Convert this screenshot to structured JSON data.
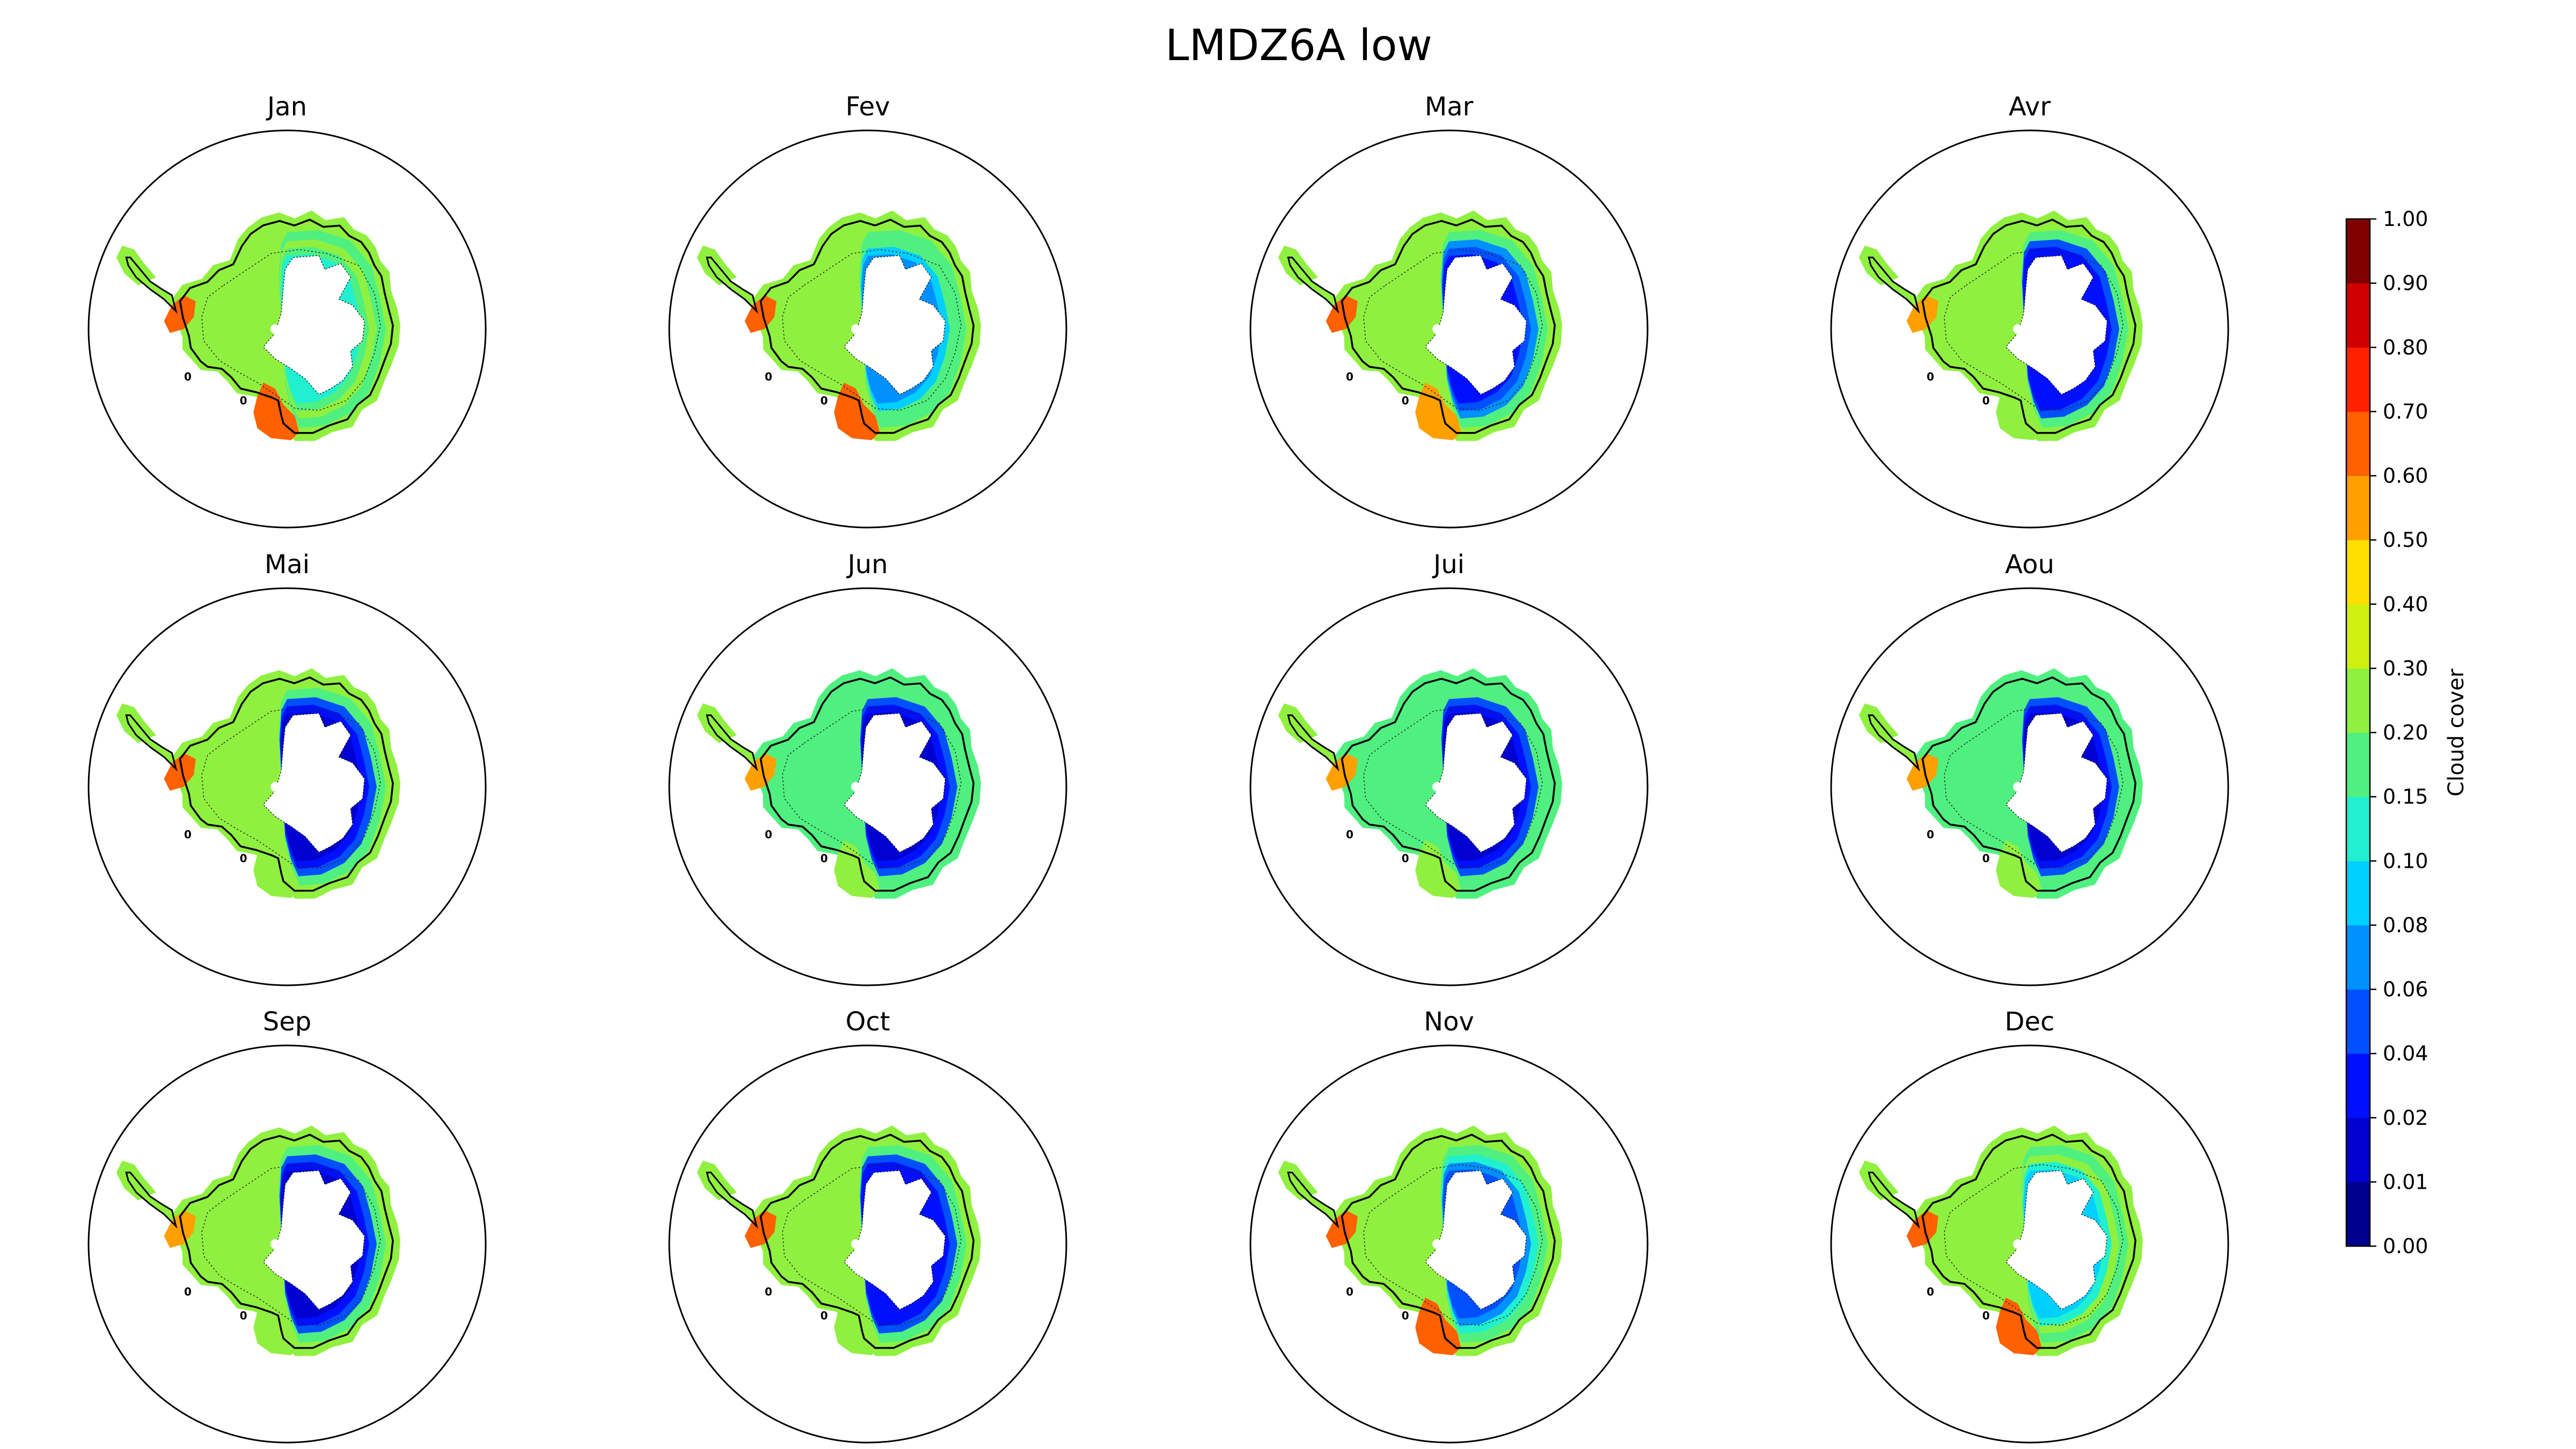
{
  "chart_data": {
    "type": "heatmap",
    "title": "LMDZ6A low",
    "projection": "south-polar-stereographic",
    "variable": "low cloud cover",
    "panels": [
      {
        "month": "Jan",
        "coast": 0.22,
        "west": 0.26,
        "east_interior": 0.1,
        "ross_sector": 0.62,
        "amundsen_sector": 0.65
      },
      {
        "month": "Fev",
        "coast": 0.22,
        "west": 0.24,
        "east_interior": 0.06,
        "ross_sector": 0.6,
        "amundsen_sector": 0.62
      },
      {
        "month": "Mar",
        "coast": 0.2,
        "west": 0.22,
        "east_interior": 0.03,
        "ross_sector": 0.55,
        "amundsen_sector": 0.6
      },
      {
        "month": "Avr",
        "coast": 0.2,
        "west": 0.2,
        "east_interior": 0.02,
        "ross_sector": 0.22,
        "amundsen_sector": 0.58
      },
      {
        "month": "Mai",
        "coast": 0.2,
        "west": 0.2,
        "east_interior": 0.01,
        "ross_sector": 0.22,
        "amundsen_sector": 0.62
      },
      {
        "month": "Jun",
        "coast": 0.18,
        "west": 0.2,
        "east_interior": 0.01,
        "ross_sector": 0.2,
        "amundsen_sector": 0.55
      },
      {
        "month": "Jui",
        "coast": 0.18,
        "west": 0.2,
        "east_interior": 0.01,
        "ross_sector": 0.2,
        "amundsen_sector": 0.55
      },
      {
        "month": "Aou",
        "coast": 0.18,
        "west": 0.2,
        "east_interior": 0.01,
        "ross_sector": 0.2,
        "amundsen_sector": 0.55
      },
      {
        "month": "Sep",
        "coast": 0.2,
        "west": 0.2,
        "east_interior": 0.01,
        "ross_sector": 0.2,
        "amundsen_sector": 0.58
      },
      {
        "month": "Oct",
        "coast": 0.2,
        "west": 0.2,
        "east_interior": 0.02,
        "ross_sector": 0.2,
        "amundsen_sector": 0.6
      },
      {
        "month": "Nov",
        "coast": 0.2,
        "west": 0.22,
        "east_interior": 0.04,
        "ross_sector": 0.6,
        "amundsen_sector": 0.62
      },
      {
        "month": "Dec",
        "coast": 0.22,
        "west": 0.25,
        "east_interior": 0.08,
        "ross_sector": 0.65,
        "amundsen_sector": 0.65
      }
    ],
    "contour_label": "0",
    "colorbar": {
      "label": "Cloud cover",
      "ticks": [
        "0.00",
        "0.01",
        "0.02",
        "0.04",
        "0.06",
        "0.08",
        "0.10",
        "0.15",
        "0.20",
        "0.30",
        "0.40",
        "0.50",
        "0.60",
        "0.70",
        "0.80",
        "0.90",
        "1.00"
      ],
      "colors": [
        "#00008f",
        "#0000d0",
        "#0010ff",
        "#0050ff",
        "#0090ff",
        "#00d0ff",
        "#20f0d0",
        "#50f080",
        "#90f040",
        "#d0f010",
        "#ffe000",
        "#ffa000",
        "#ff6000",
        "#ff2000",
        "#d00000",
        "#800000"
      ],
      "orientation": "vertical",
      "position": "right"
    },
    "colors": {
      "ice_shelf_mask": "#ffffff",
      "coastline": "#000000",
      "frame": "#000000"
    }
  }
}
